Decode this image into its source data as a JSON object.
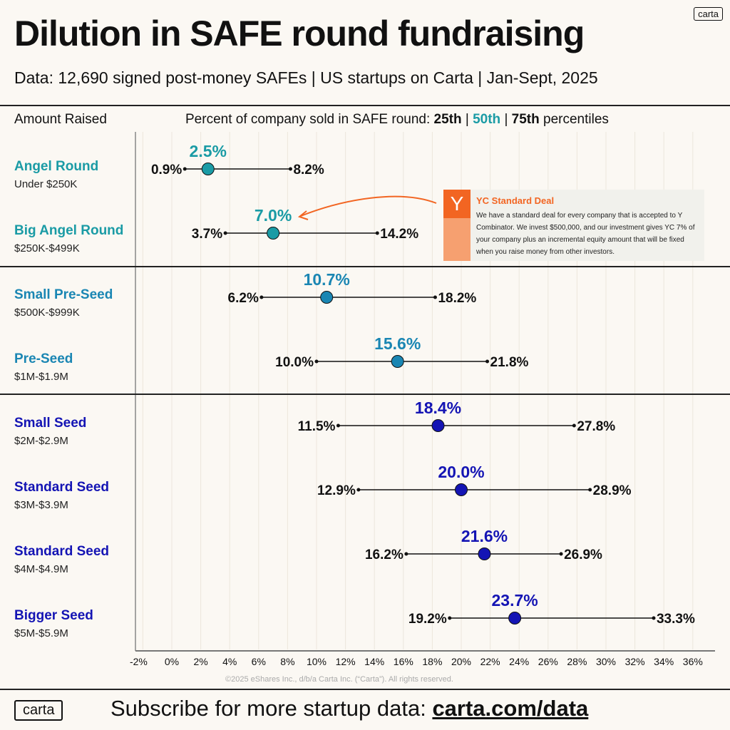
{
  "header": {
    "title": "Dilution in SAFE round fundraising",
    "subtitle": "Data: 12,690 signed post-money SAFEs | US startups on Carta | Jan-Sept, 2025",
    "logo": "carta"
  },
  "columns": {
    "left": "Amount Raised",
    "right_prefix": "Percent of company sold in SAFE round: ",
    "p25": "25th",
    "sep": " | ",
    "p50": "50th",
    "p75": "75th",
    "suffix": " percentiles"
  },
  "colors": {
    "angel": "#1a9ba5",
    "preseed": "#1a86b3",
    "seed": "#1414b4",
    "yc": "#f26522"
  },
  "chart_data": {
    "type": "dot-range",
    "xlim": [
      -2,
      37
    ],
    "x_ticks": [
      "-2%",
      "0%",
      "2%",
      "4%",
      "6%",
      "8%",
      "10%",
      "12%",
      "14%",
      "16%",
      "18%",
      "20%",
      "22%",
      "24%",
      "26%",
      "28%",
      "30%",
      "32%",
      "34%",
      "36%"
    ],
    "x_tick_values": [
      -2,
      0,
      2,
      4,
      6,
      8,
      10,
      12,
      14,
      16,
      18,
      20,
      22,
      24,
      26,
      28,
      30,
      32,
      34,
      36
    ],
    "grid": true,
    "rows": [
      {
        "name": "Angel Round",
        "range": "Under $250K",
        "group": "angel",
        "p25": 0.9,
        "p50": 2.5,
        "p75": 8.2
      },
      {
        "name": "Big Angel Round",
        "range": "$250K-$499K",
        "group": "angel",
        "p25": 3.7,
        "p50": 7.0,
        "p75": 14.2
      },
      {
        "name": "Small Pre-Seed",
        "range": "$500K-$999K",
        "group": "preseed",
        "p25": 6.2,
        "p50": 10.7,
        "p75": 18.2
      },
      {
        "name": "Pre-Seed",
        "range": "$1M-$1.9M",
        "group": "preseed",
        "p25": 10.0,
        "p50": 15.6,
        "p75": 21.8
      },
      {
        "name": "Small Seed",
        "range": "$2M-$2.9M",
        "group": "seed",
        "p25": 11.5,
        "p50": 18.4,
        "p75": 27.8
      },
      {
        "name": "Standard Seed",
        "range": "$3M-$3.9M",
        "group": "seed",
        "p25": 12.9,
        "p50": 20.0,
        "p75": 28.9
      },
      {
        "name": "Standard Seed",
        "range": "$4M-$4.9M",
        "group": "seed",
        "p25": 16.2,
        "p50": 21.6,
        "p75": 26.9
      },
      {
        "name": "Bigger Seed",
        "range": "$5M-$5.9M",
        "group": "seed",
        "p25": 19.2,
        "p50": 23.7,
        "p75": 33.3
      }
    ]
  },
  "annotation": {
    "logo": "Y",
    "title": "YC Standard Deal",
    "body": "We have a standard deal for every company that is accepted to Y Combinator. We invest $500,000, and our investment gives YC 7% of your company plus an incremental equity amount that will be fixed when you raise money from other investors."
  },
  "footer": {
    "copyright": "©2025 eShares Inc., d/b/a Carta Inc. (“Carta”). All rights reserved.",
    "logo": "carta",
    "cta": "Subscribe for more startup data: ",
    "link": "carta.com/data"
  }
}
